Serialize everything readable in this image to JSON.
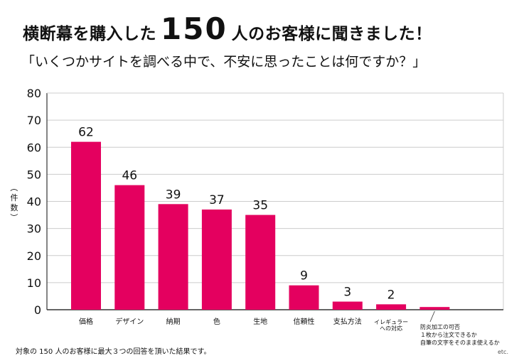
{
  "header": {
    "title_pre": "横断幕を購入した",
    "title_number": "150",
    "title_post": "人のお客様に聞きました！",
    "subtitle": "「いくつかサイトを調べる中で、不安に思ったことは何ですか？」"
  },
  "footnote": "対象の 150 人のお客様に最大３つの回答を頂いた結果です。",
  "colors": {
    "bar": "#e4005f",
    "grid": "#cccccc",
    "axis": "#333333"
  },
  "chart_data": {
    "type": "bar",
    "title": "横断幕を購入した150人のお客様に聞きました！",
    "ylabel": "（件数）",
    "ylim": [
      0,
      80
    ],
    "yticks": [
      0,
      10,
      20,
      30,
      40,
      50,
      60,
      70,
      80
    ],
    "categories": [
      "価格",
      "デザイン",
      "納期",
      "色",
      "生地",
      "信頼性",
      "支払方法",
      "イレギュラーへの対応",
      "防炎加工の可否 1枚から注文できるか 自筆の文字をそのまま使えるか etc."
    ],
    "values": [
      62,
      46,
      39,
      37,
      35,
      9,
      3,
      2,
      1
    ],
    "data_labels": [
      "62",
      "46",
      "39",
      "37",
      "35",
      "9",
      "3",
      "2",
      ""
    ],
    "category_lines": [
      [
        "価格"
      ],
      [
        "デザイン"
      ],
      [
        "納期"
      ],
      [
        "色"
      ],
      [
        "生地"
      ],
      [
        "信頼性"
      ],
      [
        "支払方法"
      ],
      [
        "イレギュラー",
        "への対応"
      ],
      [
        "防炎加工の可否",
        "１枚から注文できるか",
        "自筆の文字をそのまま使えるか"
      ]
    ],
    "etc_label": "etc."
  }
}
